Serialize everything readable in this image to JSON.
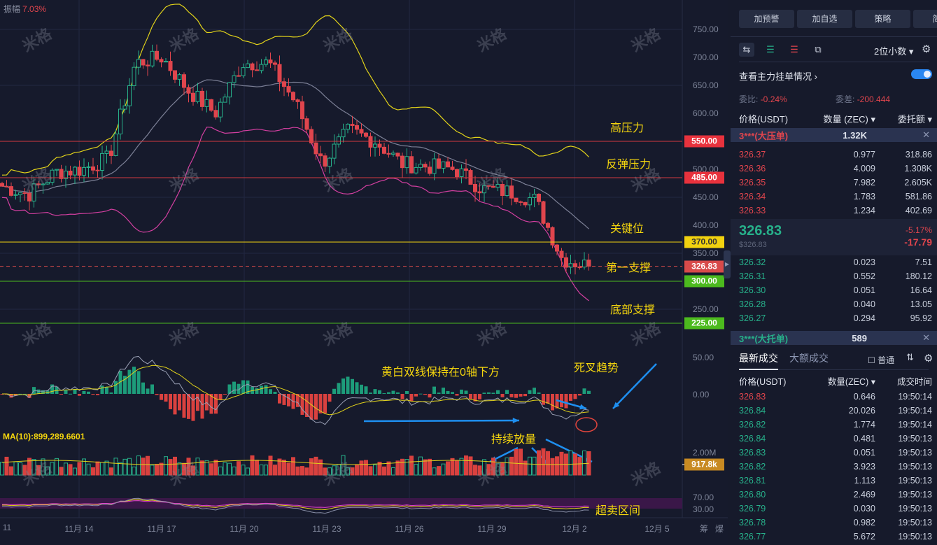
{
  "header": {
    "amplitude_label": "振幅",
    "amplitude_value": "7.03%"
  },
  "price_axis": [
    "750.00",
    "700.00",
    "650.00",
    "600.00",
    "500.00",
    "450.00",
    "400.00",
    "350.00",
    "250.00"
  ],
  "price_axis_values": [
    750,
    700,
    650,
    600,
    500,
    450,
    400,
    350,
    250
  ],
  "levels": [
    {
      "value": 550,
      "label": "550.00",
      "color": "#e8323d",
      "line": "#d33a40",
      "note": "高压力"
    },
    {
      "value": 485,
      "label": "485.00",
      "color": "#e8323d",
      "line": "#d33a40",
      "note": "反弹压力"
    },
    {
      "value": 370,
      "label": "370.00",
      "color": "#f2d20f",
      "line": "#f2d20f",
      "note": "关键位",
      "dark": true
    },
    {
      "value": 326.83,
      "label": "326.83",
      "color": "#d84a4a",
      "line": "#d84a4a",
      "note": "第一支撑",
      "dashed": true
    },
    {
      "value": 300,
      "label": "300.00",
      "color": "#4cba1e",
      "line": "#4cba1e",
      "note": ""
    },
    {
      "value": 225,
      "label": "225.00",
      "color": "#4cba1e",
      "line": "#4cba1e",
      "note": "底部支撑"
    }
  ],
  "macd": {
    "axis": [
      "50.00",
      "0.00"
    ],
    "annotation": "黄白双线保持在0轴下方",
    "annotation2": "死叉趋势"
  },
  "volume": {
    "ma_label": "MA(10):899,289.6601",
    "axis_top": "2.00M",
    "current": "917.8k",
    "annotation": "持续放量"
  },
  "rsi": {
    "axis": [
      "70.00",
      "30.00"
    ],
    "annotation": "超卖区间"
  },
  "x_axis": [
    "11",
    "11月 14",
    "11月 17",
    "11月 20",
    "11月 23",
    "11月 26",
    "11月 29",
    "12月 2",
    "12月 5"
  ],
  "x_axis_extra": [
    "筹",
    "爆"
  ],
  "watermark": "米格",
  "chart_data": {
    "type": "candlestick",
    "closes_by_day": {
      "11月11": 470,
      "11月12": 455,
      "11月13": 495,
      "11月14": 500,
      "11月15": 520,
      "11月16": 690,
      "11月17": 700,
      "11月18": 640,
      "11月19": 600,
      "11月20": 690,
      "11月21": 690,
      "11月22": 620,
      "11月23": 510,
      "11月24": 570,
      "11月25": 550,
      "11月26": 510,
      "11月27": 505,
      "11月28": 500,
      "11月29": 465,
      "11月30": 460,
      "12月1": 445,
      "12月2": 340,
      "12月2b": 327
    },
    "ylim": [
      220,
      770
    ]
  },
  "panel": {
    "buttons": [
      "加预警",
      "加自选",
      "策略",
      "简况"
    ],
    "decimal": "2位小数",
    "main_orders": "查看主力挂单情况",
    "ratio_label": "委比:",
    "ratio": "-0.24%",
    "diff_label": "委差:",
    "diff": "-200.444",
    "book_headers": [
      "价格(USDT)",
      "数量 (ZEC)",
      "委托额"
    ],
    "ask_wall": {
      "label": "3***(大压单)",
      "qty": "1.32K"
    },
    "asks": [
      [
        "326.37",
        "0.977",
        "318.86"
      ],
      [
        "326.36",
        "4.009",
        "1.308K"
      ],
      [
        "326.35",
        "7.982",
        "2.605K"
      ],
      [
        "326.34",
        "1.783",
        "581.86"
      ],
      [
        "326.33",
        "1.234",
        "402.69"
      ]
    ],
    "last_price": "326.83",
    "last_usd": "$326.83",
    "change_pct": "-5.17%",
    "change": "-17.79",
    "bids": [
      [
        "326.32",
        "0.023",
        "7.51"
      ],
      [
        "326.31",
        "0.552",
        "180.12"
      ],
      [
        "326.30",
        "0.051",
        "16.64"
      ],
      [
        "326.28",
        "0.040",
        "13.05"
      ],
      [
        "326.27",
        "0.294",
        "95.92"
      ]
    ],
    "bid_wall": {
      "label": "3***(大托单)",
      "qty": "589"
    },
    "tabs": [
      "最新成交",
      "大额成交"
    ],
    "normal": "普通",
    "trade_headers": [
      "价格(USDT)",
      "数量(ZEC)",
      "成交时间"
    ],
    "trades": [
      [
        "326.83",
        "0.646",
        "19:50:14",
        "s"
      ],
      [
        "326.84",
        "20.026",
        "19:50:14",
        "b"
      ],
      [
        "326.82",
        "1.774",
        "19:50:14",
        "b"
      ],
      [
        "326.84",
        "0.481",
        "19:50:13",
        "b"
      ],
      [
        "326.83",
        "0.051",
        "19:50:13",
        "b"
      ],
      [
        "326.82",
        "3.923",
        "19:50:13",
        "b"
      ],
      [
        "326.81",
        "1.113",
        "19:50:13",
        "b"
      ],
      [
        "326.80",
        "2.469",
        "19:50:13",
        "b"
      ],
      [
        "326.79",
        "0.030",
        "19:50:13",
        "b"
      ],
      [
        "326.78",
        "0.982",
        "19:50:13",
        "b"
      ],
      [
        "326.77",
        "5.672",
        "19:50:13",
        "b"
      ]
    ]
  }
}
